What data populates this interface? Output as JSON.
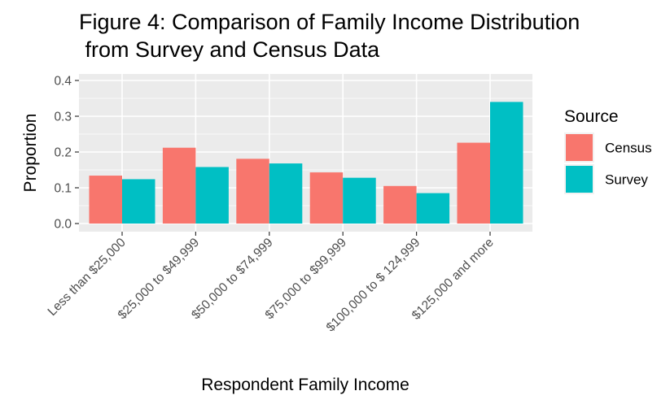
{
  "chart_data": {
    "type": "bar",
    "title_lines": [
      "Figure 4: Comparison of Family Income Distribution",
      " from Survey and Census Data"
    ],
    "xlabel": "Respondent Family Income",
    "ylabel": "Proportion",
    "categories": [
      "Less than $25,000",
      "$25,000 to $49,999",
      "$50,000 to $74,999",
      "$75,000 to $99,999",
      "$100,000 to $ 124,999",
      "$125,000 and more"
    ],
    "series": [
      {
        "name": "Census",
        "color": "#F8766D",
        "values": [
          0.134,
          0.212,
          0.181,
          0.143,
          0.105,
          0.226
        ]
      },
      {
        "name": "Survey",
        "color": "#00BFC4",
        "values": [
          0.124,
          0.158,
          0.168,
          0.128,
          0.085,
          0.34
        ]
      }
    ],
    "ylim": [
      0,
      0.41
    ],
    "yticks": [
      0.0,
      0.1,
      0.2,
      0.3,
      0.4
    ],
    "ytick_labels": [
      "0.0",
      "0.1",
      "0.2",
      "0.3",
      "0.4"
    ],
    "grid": true,
    "legend": {
      "title": "Source",
      "position": "right"
    }
  }
}
